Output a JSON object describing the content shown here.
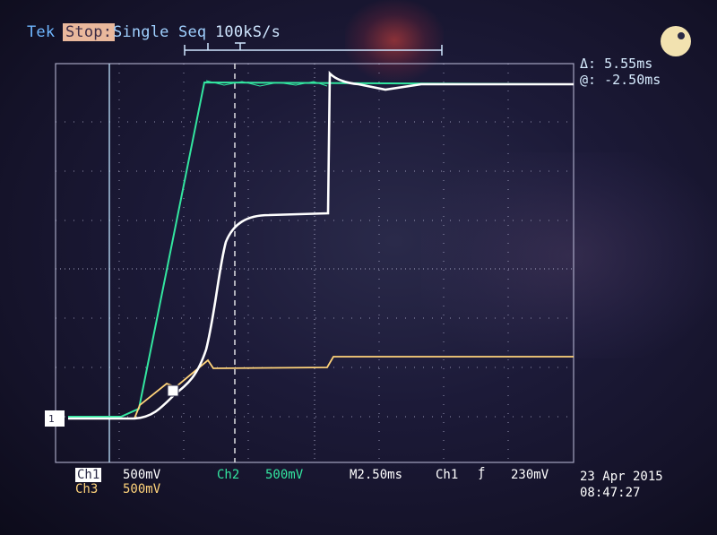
{
  "header": {
    "brand": "Tek",
    "state": "Stop:",
    "mode": "Single Seq",
    "sample_rate": "100kS/s"
  },
  "cursor_readout": {
    "delta": "Δ: 5.55ms",
    "at": "@: -2.50ms"
  },
  "channels": {
    "ch1": {
      "label": "Ch1",
      "scale": "500mV",
      "color": "#ffffff"
    },
    "ch2": {
      "label": "Ch2",
      "scale": "500mV",
      "color": "#33e6a0"
    },
    "ch3": {
      "label": "Ch3",
      "scale": "500mV",
      "color": "#ffd37a"
    }
  },
  "timebase": "M2.50ms",
  "trigger": {
    "source": "Ch1",
    "slope_symbol": "ƒ",
    "level": "230mV"
  },
  "datetime": {
    "date": "23 Apr 2015",
    "time": "08:47:27"
  },
  "colors": {
    "grid": "#c9c9e6",
    "ch1": "#ffffff",
    "ch2": "#33e6a0",
    "ch3": "#ffd37a",
    "header": "#6fb6ff"
  }
}
